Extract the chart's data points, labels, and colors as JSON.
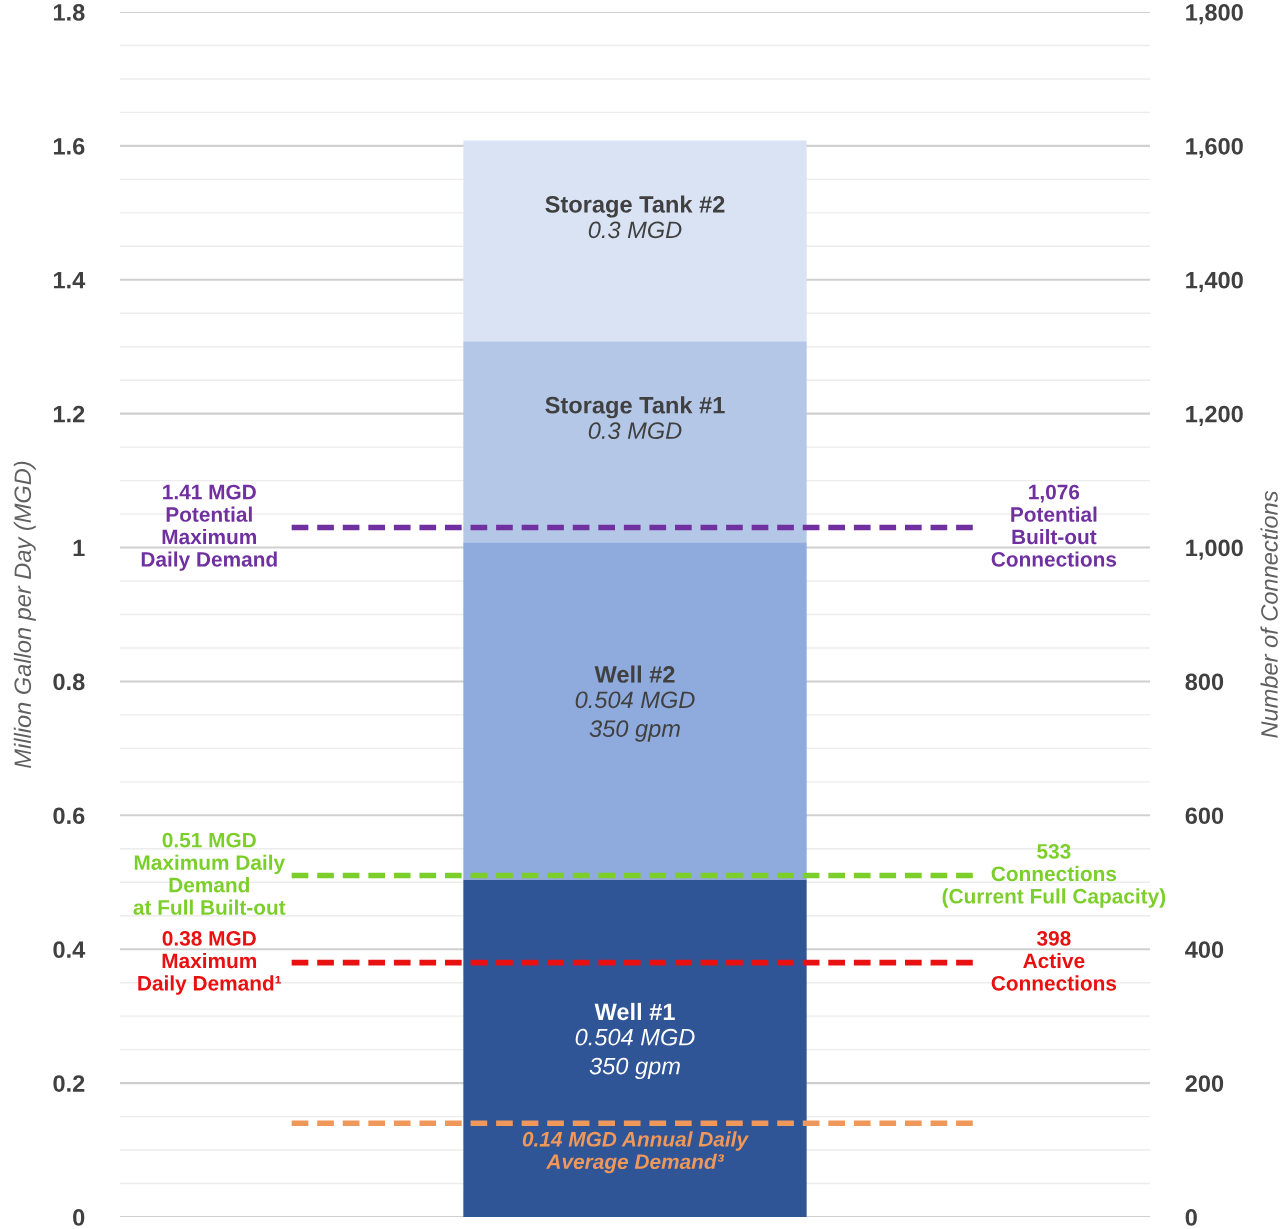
{
  "chart_data": {
    "type": "bar",
    "stacked": true,
    "categories": [
      null
    ],
    "series": [
      {
        "name": "Well #1",
        "color": "#2f5597",
        "values": [
          0.504
        ],
        "value_labels": [
          "0.504 MGD\n350 gpm"
        ]
      },
      {
        "name": "Well #2",
        "color": "#8faadc",
        "values": [
          0.504
        ],
        "value_labels": [
          "0.504 MGD\n350 gpm"
        ]
      },
      {
        "name": "Storage Tank #1",
        "color": "#b4c7e7",
        "values": [
          0.3
        ],
        "value_labels": [
          "0.3 MGD"
        ]
      },
      {
        "name": "Storage Tank #2",
        "color": "#dae3f3",
        "values": [
          0.3
        ],
        "value_labels": [
          "0.3 MGD"
        ]
      }
    ],
    "ylabel": "Million Gallon per Day (MGD)",
    "y2label": "Number of Connections",
    "ylim": [
      0,
      1.8
    ],
    "yticks": [
      0,
      0.2,
      0.4,
      0.6,
      0.8,
      1,
      1.2,
      1.4,
      1.6,
      1.8
    ],
    "y2lim": [
      0,
      1800
    ],
    "y2ticks": [
      0,
      200,
      400,
      600,
      800,
      {
        "value": 1000,
        "label": "1,000"
      },
      {
        "value": 1200,
        "label": "1,200"
      },
      {
        "value": 1400,
        "label": "1,400"
      },
      {
        "value": 1600,
        "label": "1,600"
      },
      {
        "value": 1800,
        "label": "1,800"
      }
    ],
    "grid": "y",
    "legend": false,
    "ref_lines": [
      {
        "axis": "y",
        "value": 1.03,
        "label": "1.41 MGD\nPotential\nMaximum\nDaily Demand",
        "color": "#7030a0",
        "line_style": "dashed"
      },
      {
        "axis": "y",
        "value": 0.51,
        "label": "0.51 MGD\nMaximum Daily\nDemand\nat Full Built-out",
        "color": "#7ccf2a",
        "line_style": "dashed"
      },
      {
        "axis": "y",
        "value": 0.38,
        "label": "0.38 MGD\nMaximum\nDaily Demand¹",
        "color": "#e81010",
        "line_style": "dashed"
      },
      {
        "axis": "y",
        "value": 0.14,
        "label": "0.14 MGD Annual Daily\nAverage Demand³",
        "color": "#f0985a",
        "line_style": "dashed"
      }
    ],
    "annotations": [
      "1,076\nPotential\nBuilt-out\nConnections",
      "533\nConnections\n(Current Full Capacity)",
      "398\nActive\nConnections"
    ]
  }
}
